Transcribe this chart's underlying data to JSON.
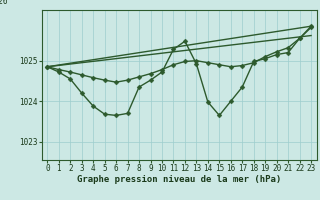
{
  "xlabel": "Graphe pression niveau de la mer (hPa)",
  "bg_color": "#cce8e4",
  "line_color": "#2d5a2d",
  "grid_color": "#9ecece",
  "text_color": "#1a3a1a",
  "yticks": [
    1023,
    1024,
    1025
  ],
  "ylim": [
    1022.55,
    1026.25
  ],
  "xlim": [
    -0.5,
    23.5
  ],
  "xticks": [
    0,
    1,
    2,
    3,
    4,
    5,
    6,
    7,
    8,
    9,
    10,
    11,
    12,
    13,
    14,
    15,
    16,
    17,
    18,
    19,
    20,
    21,
    22,
    23
  ],
  "series": [
    {
      "x": [
        0,
        1,
        2,
        3,
        4,
        5,
        6,
        7,
        8,
        9,
        10,
        11,
        12,
        13,
        14,
        15,
        16,
        17,
        18,
        19,
        20,
        21,
        22,
        23
      ],
      "y": [
        1024.85,
        1024.78,
        1024.72,
        1024.65,
        1024.58,
        1024.52,
        1024.47,
        1024.52,
        1024.6,
        1024.68,
        1024.78,
        1024.9,
        1024.98,
        1025.0,
        1024.95,
        1024.9,
        1024.85,
        1024.88,
        1024.95,
        1025.1,
        1025.22,
        1025.32,
        1025.55,
        1025.82
      ],
      "marker": true
    },
    {
      "x": [
        0,
        1,
        2,
        3,
        4,
        5,
        6,
        7,
        8,
        9,
        10,
        11,
        12,
        13,
        14,
        15,
        16,
        17,
        18,
        19,
        20,
        21,
        22,
        23
      ],
      "y": [
        1024.85,
        1024.72,
        1024.55,
        1024.2,
        1023.88,
        1023.68,
        1023.65,
        1023.7,
        1024.35,
        1024.52,
        1024.72,
        1025.28,
        1025.48,
        1024.92,
        1023.98,
        1023.65,
        1024.0,
        1024.35,
        1024.98,
        1025.05,
        1025.15,
        1025.2,
        1025.55,
        1025.85
      ],
      "marker": true
    },
    {
      "x": [
        0,
        23
      ],
      "y": [
        1024.85,
        1025.85
      ],
      "marker": false
    },
    {
      "x": [
        0,
        23
      ],
      "y": [
        1024.85,
        1025.62
      ],
      "marker": false
    }
  ],
  "marker": "D",
  "markersize": 2.5,
  "linewidth": 1.0,
  "tick_fontsize": 5.5,
  "xlabel_fontsize": 6.5
}
